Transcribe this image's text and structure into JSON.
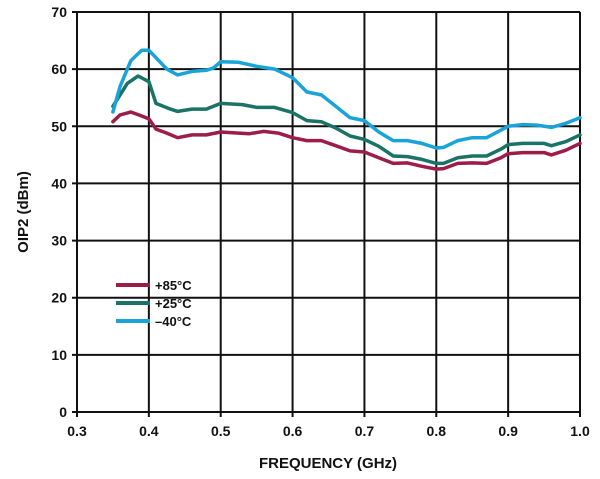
{
  "chart_data": {
    "type": "line",
    "title": "",
    "xlabel": "FREQUENCY (GHz)",
    "ylabel": "OIP2 (dBm)",
    "xlim": [
      0.3,
      1.0
    ],
    "ylim": [
      0,
      70
    ],
    "xticks": [
      "0.3",
      "0.4",
      "0.5",
      "0.6",
      "0.7",
      "0.8",
      "0.9",
      "1.0"
    ],
    "yticks": [
      "0",
      "10",
      "20",
      "30",
      "40",
      "50",
      "60",
      "70"
    ],
    "grid": true,
    "legend_position": "lower-left",
    "series": [
      {
        "name": "+85°C",
        "color": "#9e1c4a",
        "x": [
          0.35,
          0.36,
          0.375,
          0.39,
          0.4,
          0.41,
          0.425,
          0.44,
          0.46,
          0.48,
          0.5,
          0.525,
          0.54,
          0.56,
          0.58,
          0.6,
          0.62,
          0.64,
          0.66,
          0.68,
          0.7,
          0.72,
          0.74,
          0.76,
          0.78,
          0.8,
          0.81,
          0.83,
          0.85,
          0.87,
          0.89,
          0.9,
          0.92,
          0.95,
          0.96,
          0.98,
          1.0
        ],
        "y": [
          50.8,
          52,
          52.5,
          51.8,
          51.3,
          49.5,
          48.8,
          48,
          48.5,
          48.5,
          49,
          48.8,
          48.7,
          49.1,
          48.8,
          48,
          47.5,
          47.5,
          46.6,
          45.7,
          45.5,
          44.5,
          43.5,
          43.6,
          43,
          42.5,
          42.6,
          43.5,
          43.6,
          43.5,
          44.5,
          45.2,
          45.4,
          45.4,
          45,
          45.8,
          47
        ]
      },
      {
        "name": "+25°C",
        "color": "#1a7366",
        "x": [
          0.35,
          0.37,
          0.385,
          0.4,
          0.41,
          0.43,
          0.44,
          0.46,
          0.48,
          0.5,
          0.53,
          0.55,
          0.575,
          0.6,
          0.62,
          0.64,
          0.66,
          0.68,
          0.7,
          0.72,
          0.74,
          0.76,
          0.78,
          0.8,
          0.81,
          0.83,
          0.85,
          0.87,
          0.89,
          0.9,
          0.92,
          0.95,
          0.96,
          0.98,
          1.0
        ],
        "y": [
          53.5,
          57.5,
          58.8,
          57.8,
          54,
          53,
          52.6,
          53,
          53,
          54,
          53.8,
          53.3,
          53.3,
          52.4,
          51,
          50.8,
          49.7,
          48.3,
          47.7,
          46.5,
          44.8,
          44.7,
          44.2,
          43.5,
          43.5,
          44.5,
          44.8,
          44.8,
          46,
          46.8,
          47,
          47,
          46.6,
          47.3,
          48.5
        ]
      },
      {
        "name": "–40°C",
        "color": "#19a3d9",
        "x": [
          0.35,
          0.36,
          0.375,
          0.39,
          0.4,
          0.41,
          0.425,
          0.44,
          0.46,
          0.48,
          0.49,
          0.5,
          0.525,
          0.55,
          0.575,
          0.6,
          0.62,
          0.64,
          0.66,
          0.68,
          0.7,
          0.72,
          0.74,
          0.76,
          0.78,
          0.8,
          0.81,
          0.83,
          0.85,
          0.87,
          0.9,
          0.92,
          0.94,
          0.96,
          0.98,
          1.0
        ],
        "y": [
          52.5,
          57,
          61.5,
          63.3,
          63.3,
          62,
          60,
          59,
          59.6,
          59.8,
          60.2,
          61.3,
          61.2,
          60.5,
          60,
          58.5,
          56,
          55.5,
          53.5,
          51.5,
          51,
          49,
          47.5,
          47.5,
          47,
          46.2,
          46.3,
          47.5,
          48,
          48,
          50,
          50.3,
          50.2,
          49.8,
          50.5,
          51.5
        ]
      }
    ]
  }
}
